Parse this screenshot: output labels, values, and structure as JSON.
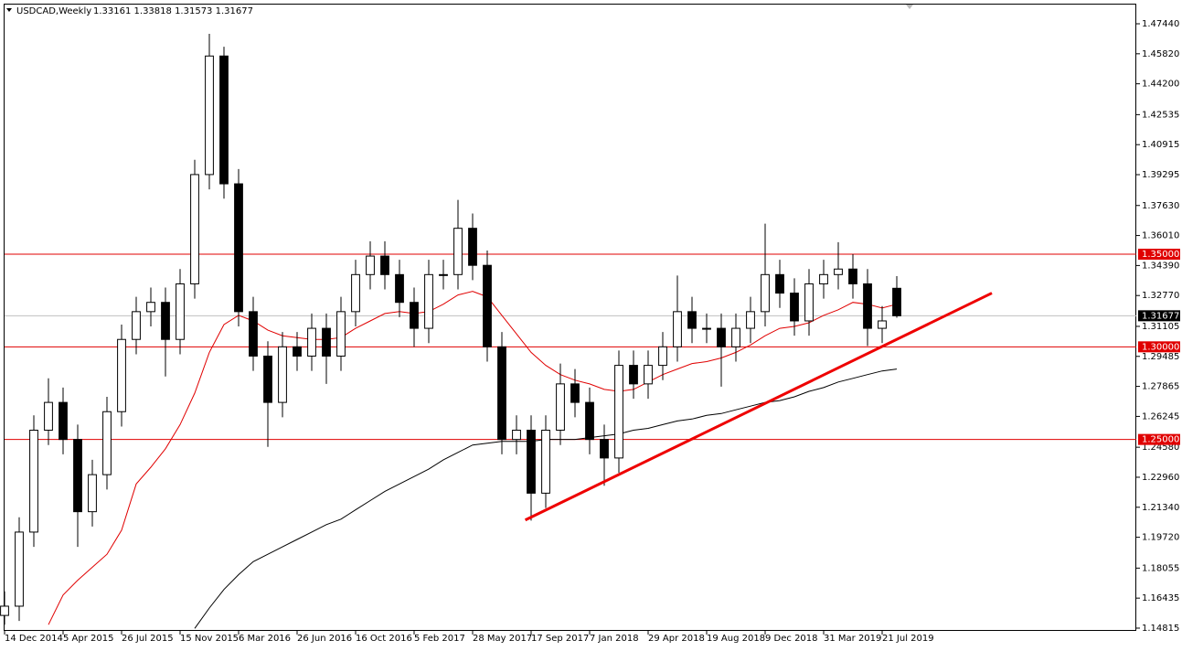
{
  "chart_data": {
    "type": "candlestick",
    "title": "USDCAD,Weekly",
    "subtitle": "1.33161 1.33818 1.31573 1.31677",
    "open": [
      1.155,
      1.16,
      1.2,
      1.255,
      1.27,
      1.25,
      1.211,
      1.231,
      1.265,
      1.304,
      1.319,
      1.324,
      1.304,
      1.334,
      1.393,
      1.457,
      1.388,
      1.319,
      1.295,
      1.27,
      1.3,
      1.295,
      1.31,
      1.295,
      1.319,
      1.339,
      1.349,
      1.339,
      1.324,
      1.31,
      1.339,
      1.339,
      1.364,
      1.344,
      1.3,
      1.25,
      1.255,
      1.221,
      1.255,
      1.28,
      1.27,
      1.25,
      1.24,
      1.29,
      1.28,
      1.29,
      1.3,
      1.319,
      1.31,
      1.31,
      1.3,
      1.31,
      1.319,
      1.339,
      1.329,
      1.314,
      1.334,
      1.339,
      1.342,
      1.334,
      1.31,
      1.33161
    ],
    "high": [
      1.168,
      1.208,
      1.263,
      1.283,
      1.278,
      1.258,
      1.239,
      1.273,
      1.312,
      1.327,
      1.332,
      1.332,
      1.342,
      1.401,
      1.469,
      1.462,
      1.396,
      1.327,
      1.303,
      1.308,
      1.308,
      1.318,
      1.318,
      1.327,
      1.347,
      1.357,
      1.357,
      1.347,
      1.332,
      1.347,
      1.347,
      1.3793,
      1.372,
      1.352,
      1.308,
      1.263,
      1.263,
      1.263,
      1.291,
      1.288,
      1.278,
      1.258,
      1.298,
      1.298,
      1.298,
      1.308,
      1.3385,
      1.327,
      1.318,
      1.318,
      1.318,
      1.327,
      1.3665,
      1.347,
      1.337,
      1.342,
      1.347,
      1.3565,
      1.35,
      1.342,
      1.322,
      1.33818
    ],
    "low": [
      1.15,
      1.152,
      1.192,
      1.247,
      1.242,
      1.192,
      1.203,
      1.223,
      1.257,
      1.296,
      1.311,
      1.284,
      1.296,
      1.326,
      1.385,
      1.38,
      1.311,
      1.287,
      1.246,
      1.262,
      1.287,
      1.287,
      1.28,
      1.287,
      1.311,
      1.331,
      1.331,
      1.316,
      1.3,
      1.302,
      1.331,
      1.331,
      1.336,
      1.292,
      1.242,
      1.242,
      1.2062,
      1.213,
      1.247,
      1.262,
      1.242,
      1.225,
      1.232,
      1.272,
      1.272,
      1.282,
      1.292,
      1.302,
      1.302,
      1.2785,
      1.292,
      1.302,
      1.311,
      1.321,
      1.306,
      1.306,
      1.326,
      1.331,
      1.326,
      1.3005,
      1.302,
      1.31573
    ],
    "close": [
      1.16,
      1.2,
      1.255,
      1.27,
      1.25,
      1.211,
      1.231,
      1.265,
      1.304,
      1.319,
      1.324,
      1.304,
      1.334,
      1.393,
      1.457,
      1.388,
      1.319,
      1.295,
      1.27,
      1.3,
      1.295,
      1.31,
      1.295,
      1.319,
      1.339,
      1.349,
      1.339,
      1.324,
      1.31,
      1.339,
      1.339,
      1.364,
      1.344,
      1.3,
      1.25,
      1.255,
      1.221,
      1.255,
      1.28,
      1.27,
      1.25,
      1.24,
      1.29,
      1.28,
      1.29,
      1.3,
      1.319,
      1.31,
      1.31,
      1.3,
      1.31,
      1.319,
      1.339,
      1.329,
      1.314,
      1.334,
      1.339,
      1.342,
      1.334,
      1.31,
      1.314,
      1.31677
    ],
    "series": [
      {
        "color": "#e00000",
        "values": [
          null,
          null,
          null,
          1.15,
          1.166,
          1.174,
          1.181,
          1.188,
          1.201,
          1.226,
          1.235,
          1.245,
          1.258,
          1.275,
          1.297,
          1.312,
          1.317,
          1.314,
          1.309,
          1.306,
          1.305,
          1.304,
          1.304,
          1.305,
          1.31,
          1.314,
          1.318,
          1.319,
          1.318,
          1.319,
          1.323,
          1.328,
          1.33,
          1.327,
          1.317,
          1.307,
          1.297,
          1.29,
          1.285,
          1.282,
          1.28,
          1.277,
          1.276,
          1.277,
          1.281,
          1.285,
          1.288,
          1.291,
          1.292,
          1.294,
          1.297,
          1.301,
          1.306,
          1.31,
          1.311,
          1.313,
          1.317,
          1.32,
          1.324,
          1.323,
          1.321,
          1.323
        ]
      },
      {
        "color": "#000000",
        "values": [
          null,
          null,
          null,
          null,
          null,
          null,
          null,
          null,
          null,
          null,
          null,
          null,
          null,
          1.148,
          1.159,
          1.169,
          1.177,
          1.184,
          1.188,
          1.192,
          1.196,
          1.2,
          1.204,
          1.207,
          1.212,
          1.217,
          1.222,
          1.226,
          1.23,
          1.234,
          1.239,
          1.243,
          1.247,
          1.248,
          1.249,
          1.249,
          1.249,
          1.25,
          1.25,
          1.25,
          1.251,
          1.252,
          1.253,
          1.255,
          1.256,
          1.258,
          1.26,
          1.261,
          1.263,
          1.264,
          1.266,
          1.268,
          1.27,
          1.271,
          1.273,
          1.276,
          1.278,
          1.281,
          1.283,
          1.285,
          1.287,
          1.288
        ]
      }
    ],
    "trendline": {
      "color": "#ee0000",
      "x": [
        35.6,
        67.5
      ],
      "y": [
        1.2065,
        1.329
      ]
    },
    "levels": [
      {
        "value": 1.35,
        "label": "1.35000",
        "color": "#e00000"
      },
      {
        "value": 1.3,
        "label": "1.30000",
        "color": "#e00000"
      },
      {
        "value": 1.25,
        "label": "1.25000",
        "color": "#e00000"
      }
    ],
    "last_price": {
      "value": 1.31677,
      "label": "1.31677"
    },
    "xlim": [
      -0.3125,
      77.375
    ],
    "ylim": [
      1.14666,
      1.48526
    ],
    "xticks": [
      {
        "value": 0,
        "label": "14 Dec 2014"
      },
      {
        "value": 4,
        "label": "5 Apr 2015"
      },
      {
        "value": 8,
        "label": "26 Jul 2015"
      },
      {
        "value": 12,
        "label": "15 Nov 2015"
      },
      {
        "value": 16,
        "label": "6 Mar 2016"
      },
      {
        "value": 20,
        "label": "26 Jun 2016"
      },
      {
        "value": 24,
        "label": "16 Oct 2016"
      },
      {
        "value": 28,
        "label": "5 Feb 2017"
      },
      {
        "value": 32,
        "label": "28 May 2017"
      },
      {
        "value": 36,
        "label": "17 Sep 2017"
      },
      {
        "value": 40,
        "label": "7 Jan 2018"
      },
      {
        "value": 44,
        "label": "29 Apr 2018"
      },
      {
        "value": 48,
        "label": "19 Aug 2018"
      },
      {
        "value": 52,
        "label": "9 Dec 2018"
      },
      {
        "value": 56,
        "label": "31 Mar 2019"
      },
      {
        "value": 60,
        "label": "21 Jul 2019"
      }
    ],
    "yticks": [
      {
        "value": 1.4744,
        "label": "1.47440"
      },
      {
        "value": 1.4582,
        "label": "1.45820"
      },
      {
        "value": 1.442,
        "label": "1.44200"
      },
      {
        "value": 1.42535,
        "label": "1.42535"
      },
      {
        "value": 1.40915,
        "label": "1.40915"
      },
      {
        "value": 1.39295,
        "label": "1.39295"
      },
      {
        "value": 1.3763,
        "label": "1.37630"
      },
      {
        "value": 1.3601,
        "label": "1.36010"
      },
      {
        "value": 1.3439,
        "label": "1.34390"
      },
      {
        "value": 1.3277,
        "label": "1.32770"
      },
      {
        "value": 1.31105,
        "label": "1.31105"
      },
      {
        "value": 1.29485,
        "label": "1.29485"
      },
      {
        "value": 1.27865,
        "label": "1.27865"
      },
      {
        "value": 1.26245,
        "label": "1.26245"
      },
      {
        "value": 1.2458,
        "label": "1.24580"
      },
      {
        "value": 1.2296,
        "label": "1.22960"
      },
      {
        "value": 1.2134,
        "label": "1.21340"
      },
      {
        "value": 1.1972,
        "label": "1.19720"
      },
      {
        "value": 1.18055,
        "label": "1.18055"
      },
      {
        "value": 1.16435,
        "label": "1.16435"
      },
      {
        "value": 1.14815,
        "label": "1.14815"
      }
    ]
  }
}
